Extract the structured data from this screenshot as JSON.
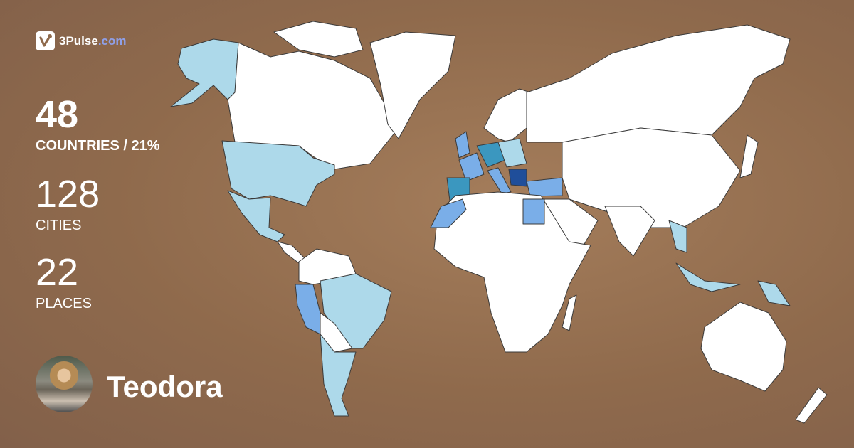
{
  "brand": {
    "name": "3Pulse",
    "domain": ".com",
    "icon": "check-pulse-logo-icon"
  },
  "stats": {
    "countries": {
      "value": "48",
      "label": "COUNTRIES / 21%"
    },
    "cities": {
      "value": "128",
      "label": "CITIES"
    },
    "places": {
      "value": "22",
      "label": "PLACES"
    }
  },
  "user": {
    "name": "Teodora",
    "avatar": "profile-photo"
  },
  "map": {
    "background": "#8f6a4c",
    "colors": {
      "unvisited": "#ffffff",
      "level1": "#add9ea",
      "level2": "#7aaee8",
      "level3": "#3b97bf",
      "level4": "#1f4e9a"
    },
    "visited_percent": 21
  }
}
